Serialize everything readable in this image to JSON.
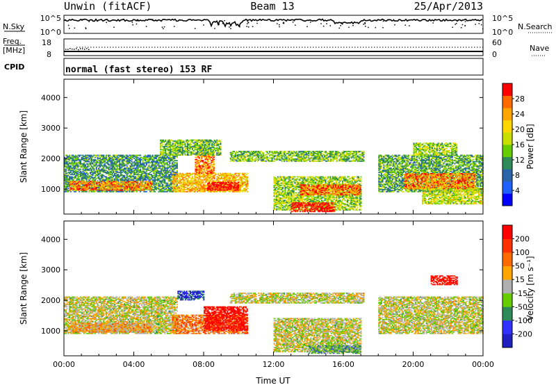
{
  "header": {
    "station": "Unwin (fitACF)",
    "beam": "Beam 13",
    "date": "25/Apr/2013",
    "mode": "normal (fast stereo) 153 RF"
  },
  "strip_panels": {
    "nsky": {
      "label": "N.Sky",
      "right_label": "N.Search",
      "left_ticks": [
        "10^5",
        "10^0"
      ],
      "right_ticks": [
        "10^5",
        "10^0"
      ]
    },
    "freq": {
      "label_line1": "Freq.",
      "label_line2": "[MHz]",
      "left_ticks": [
        "18",
        "8"
      ],
      "right_label": "Nave",
      "right_ticks": [
        "60",
        "0"
      ]
    },
    "cpid": {
      "label": "CPID"
    }
  },
  "chart_data": [
    {
      "type": "heatmap",
      "quantity": "Power",
      "xlabel": "Time UT",
      "ylabel": "Slant Range [km]",
      "xlim_hours": [
        0,
        24
      ],
      "ylim": [
        180,
        4600
      ],
      "y_ticks": [
        "1000",
        "2000",
        "3000",
        "4000"
      ],
      "x_ticks": [
        "00:00",
        "04:00",
        "08:00",
        "12:00",
        "16:00",
        "20:00",
        "00:00"
      ],
      "colorbar": {
        "label": "Power [dB]",
        "ticks": [
          "4",
          "8",
          "12",
          "16",
          "20",
          "24",
          "28"
        ],
        "colors": [
          "#0000ff",
          "#2060ff",
          "#2a63a8",
          "#2e8b57",
          "#66cd00",
          "#c8e000",
          "#ffd700",
          "#ffa500",
          "#ff6a00",
          "#ff0000"
        ]
      },
      "regions": [
        {
          "t0": 0.0,
          "t1": 6.5,
          "r0": 900,
          "r1": 2100,
          "level": 0.35
        },
        {
          "t0": 0.3,
          "t1": 5.0,
          "r0": 950,
          "r1": 1250,
          "level": 0.8
        },
        {
          "t0": 6.2,
          "t1": 10.5,
          "r0": 900,
          "r1": 1500,
          "level": 0.7
        },
        {
          "t0": 8.2,
          "t1": 10.0,
          "r0": 950,
          "r1": 1200,
          "level": 1.0
        },
        {
          "t0": 7.5,
          "t1": 8.6,
          "r0": 1500,
          "r1": 2200,
          "level": 0.8
        },
        {
          "t0": 5.5,
          "t1": 9.0,
          "r0": 2100,
          "r1": 2600,
          "level": 0.45
        },
        {
          "t0": 9.5,
          "t1": 17.2,
          "r0": 1900,
          "r1": 2250,
          "level": 0.45
        },
        {
          "t0": 12.0,
          "t1": 17.0,
          "r0": 300,
          "r1": 1400,
          "level": 0.5
        },
        {
          "t0": 13.5,
          "t1": 17.0,
          "r0": 800,
          "r1": 1150,
          "level": 0.85
        },
        {
          "t0": 13.0,
          "t1": 15.5,
          "r0": 250,
          "r1": 550,
          "level": 0.95
        },
        {
          "t0": 18.0,
          "t1": 24.0,
          "r0": 900,
          "r1": 2100,
          "level": 0.4
        },
        {
          "t0": 19.5,
          "t1": 23.5,
          "r0": 1000,
          "r1": 1500,
          "level": 0.8
        },
        {
          "t0": 20.5,
          "t1": 24.0,
          "r0": 500,
          "r1": 1000,
          "level": 0.55
        },
        {
          "t0": 20.0,
          "t1": 22.5,
          "r0": 2100,
          "r1": 2500,
          "level": 0.5
        }
      ]
    },
    {
      "type": "heatmap",
      "quantity": "Velocity",
      "xlabel": "Time UT",
      "ylabel": "Slant Range [km]",
      "xlim_hours": [
        0,
        24
      ],
      "ylim": [
        180,
        4600
      ],
      "y_ticks": [
        "1000",
        "2000",
        "3000",
        "4000"
      ],
      "x_ticks": [
        "00:00",
        "04:00",
        "08:00",
        "12:00",
        "16:00",
        "20:00",
        "00:00"
      ],
      "colorbar": {
        "label": "Velocity [m s⁻¹]",
        "ticks": [
          "200",
          "100",
          "50",
          "15",
          "-15",
          "-50",
          "-100",
          "-200"
        ],
        "colors": [
          "#2020c0",
          "#3030ff",
          "#2e8b57",
          "#66cd00",
          "#b0b0b0",
          "#ffa500",
          "#ff6a00",
          "#ff3000",
          "#ff0000"
        ]
      },
      "regions": [
        {
          "t0": 0.0,
          "t1": 6.5,
          "r0": 900,
          "r1": 2100,
          "level": 0.5
        },
        {
          "t0": 0.3,
          "t1": 5.0,
          "r0": 950,
          "r1": 1250,
          "level": 0.62
        },
        {
          "t0": 6.2,
          "t1": 10.5,
          "r0": 900,
          "r1": 1500,
          "level": 0.7
        },
        {
          "t0": 8.0,
          "t1": 10.5,
          "r0": 1000,
          "r1": 1800,
          "level": 0.95
        },
        {
          "t0": 6.5,
          "t1": 8.0,
          "r0": 2000,
          "r1": 2300,
          "level": 0.15
        },
        {
          "t0": 9.5,
          "t1": 17.2,
          "r0": 1900,
          "r1": 2250,
          "level": 0.5
        },
        {
          "t0": 12.0,
          "t1": 17.0,
          "r0": 300,
          "r1": 1400,
          "level": 0.5
        },
        {
          "t0": 14.0,
          "t1": 17.0,
          "r0": 250,
          "r1": 500,
          "level": 0.35
        },
        {
          "t0": 18.0,
          "t1": 24.0,
          "r0": 900,
          "r1": 2100,
          "level": 0.5
        },
        {
          "t0": 21.0,
          "t1": 22.5,
          "r0": 2500,
          "r1": 2800,
          "level": 0.95
        }
      ]
    }
  ]
}
